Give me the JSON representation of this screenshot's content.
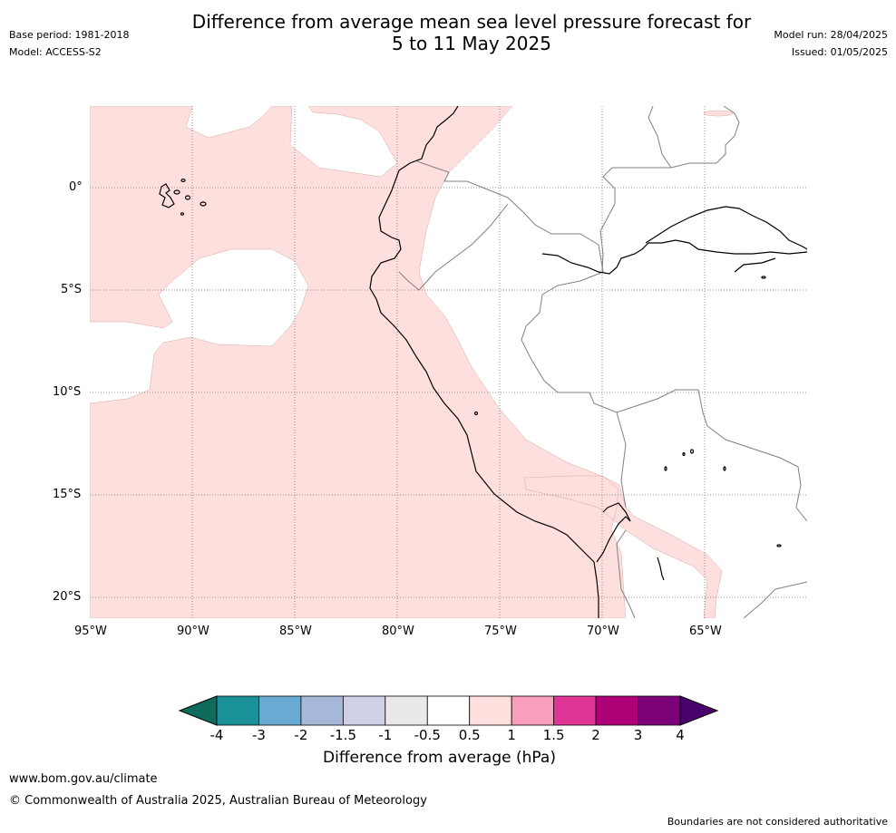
{
  "header": {
    "title_line1": "Difference from average mean sea level pressure forecast for",
    "title_line2": "5 to 11 May 2025",
    "base_period": "Base period: 1981-2018",
    "model": "Model: ACCESS-S2",
    "model_run": "Model run: 28/04/2025",
    "issued": "Issued: 01/05/2025"
  },
  "map": {
    "lat_ticks": [
      "0°",
      "5°S",
      "10°S",
      "15°S",
      "20°S"
    ],
    "lon_ticks": [
      "95°W",
      "90°W",
      "85°W",
      "80°W",
      "75°W",
      "70°W",
      "65°W"
    ],
    "anomaly_fill_color": "#fde0de",
    "anomaly_fill_category": "0.5 to 1"
  },
  "colorbar": {
    "label": "Difference from average (hPa)",
    "ticks": [
      "-4",
      "-3",
      "-2",
      "-1.5",
      "-1",
      "-0.5",
      "0.5",
      "1",
      "1.5",
      "2",
      "3",
      "4"
    ],
    "colors": [
      "#0f6b5c",
      "#1a9097",
      "#6aa9d1",
      "#a7b9db",
      "#cfd0e6",
      "#ebe8ec",
      "#ffffff",
      "#fde0de",
      "#f99fbb",
      "#de3597",
      "#ae0178",
      "#7a0177",
      "#49006a"
    ]
  },
  "footer": {
    "url": "www.bom.gov.au/climate",
    "copyright": "© Commonwealth of Australia 2025, Australian Bureau of Meteorology",
    "disclaimer": "Boundaries are not considered authoritative"
  }
}
